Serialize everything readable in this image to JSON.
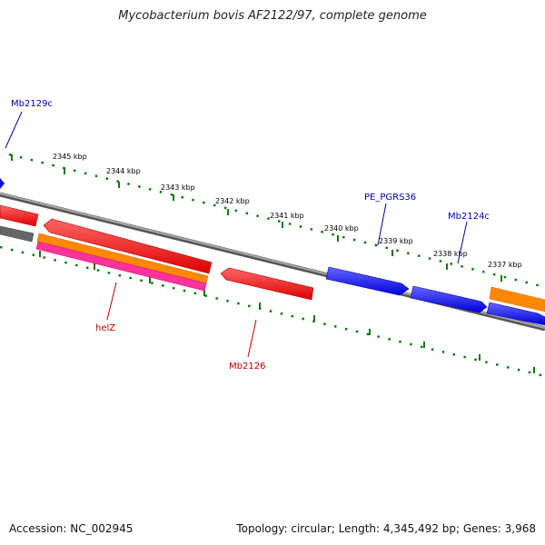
{
  "title": "Mycobacterium bovis AF2122/97, complete genome",
  "footer": {
    "accession": "Accession: NC_002945",
    "summary": "Topology: circular; Length: 4,345,492 bp; Genes: 3,968"
  },
  "ruler": {
    "tick_labels": [
      "2345 kbp",
      "2344 kbp",
      "2343 kbp",
      "2342 kbp",
      "2341 kbp",
      "2340 kbp",
      "2339 kbp",
      "2338 kbp",
      "2337 kbp"
    ]
  },
  "gene_labels": {
    "mb2129c": "Mb2129c",
    "pe_pgrs36": "PE_PGRS36",
    "mb2124c": "Mb2124c",
    "helz": "helZ",
    "mb2126": "Mb2126"
  },
  "colors": {
    "forward_gene": "#0000ee",
    "reverse_gene": "#ee0000",
    "orange_feature": "#ff8800",
    "pink_feature": "#ff3399",
    "gray_feature": "#666666",
    "tick_green": "#117711",
    "backbone": "#808080",
    "label_blue": "#0000aa",
    "label_red": "#bb0000"
  }
}
